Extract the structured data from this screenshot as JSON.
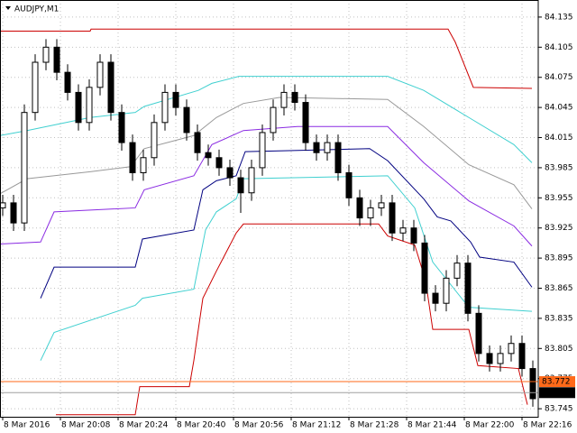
{
  "chart_data": {
    "type": "candlestick",
    "title": "AUDJPY,M1",
    "grid": true,
    "xlim": [
      -0.75,
      148.5
    ],
    "ylim": [
      83.737,
      84.152
    ],
    "xticks": [
      {
        "value": 0,
        "label": "8 Mar 2016"
      },
      {
        "value": 16,
        "label": "8 Mar 20:08"
      },
      {
        "value": 32,
        "label": "8 Mar 20:24"
      },
      {
        "value": 48,
        "label": "8 Mar 20:40"
      },
      {
        "value": 64,
        "label": "8 Mar 20:56"
      },
      {
        "value": 80,
        "label": "8 Mar 21:12"
      },
      {
        "value": 96,
        "label": "8 Mar 21:28"
      },
      {
        "value": 112,
        "label": "8 Mar 21:44"
      },
      {
        "value": 128,
        "label": "8 Mar 22:00"
      },
      {
        "value": 144,
        "label": "8 Mar 22:16"
      }
    ],
    "yticks": [
      84.135,
      84.105,
      84.075,
      84.045,
      84.015,
      83.985,
      83.955,
      83.925,
      83.895,
      83.865,
      83.835,
      83.805,
      83.775,
      83.745
    ],
    "up_color": "#ffffff",
    "down_color": "#000000",
    "wick_color": "#000000",
    "x": [
      0,
      3,
      6,
      9,
      12,
      15,
      18,
      21,
      24,
      27,
      30,
      33,
      36,
      39,
      42,
      45,
      48,
      51,
      54,
      57,
      60,
      63,
      66,
      69,
      72,
      75,
      78,
      81,
      84,
      87,
      90,
      93,
      96,
      99,
      102,
      105,
      108,
      111,
      114,
      117,
      120,
      123,
      126,
      129,
      132,
      135,
      138,
      141,
      144,
      147
    ],
    "open": [
      83.945,
      83.95,
      83.93,
      84.04,
      84.09,
      84.105,
      84.08,
      84.06,
      84.03,
      84.065,
      84.09,
      84.04,
      84.01,
      83.98,
      83.995,
      84.03,
      84.06,
      84.045,
      84.02,
      84.0,
      83.995,
      83.985,
      83.975,
      83.96,
      83.985,
      84.02,
      84.045,
      84.06,
      84.05,
      84.01,
      84.0,
      84.01,
      83.98,
      83.955,
      83.935,
      83.945,
      83.95,
      83.92,
      83.925,
      83.91,
      83.86,
      83.85,
      83.875,
      83.89,
      83.84,
      83.8,
      83.79,
      83.8,
      83.81,
      83.785
    ],
    "high": [
      83.958,
      83.958,
      84.048,
      84.098,
      84.113,
      84.113,
      84.088,
      84.068,
      84.073,
      84.098,
      84.098,
      84.048,
      84.018,
      84.003,
      84.038,
      84.068,
      84.068,
      84.053,
      84.028,
      84.008,
      84.003,
      83.993,
      83.983,
      83.993,
      84.028,
      84.053,
      84.068,
      84.068,
      84.058,
      84.018,
      84.018,
      84.018,
      83.988,
      83.963,
      83.953,
      83.958,
      83.958,
      83.933,
      83.933,
      83.918,
      83.868,
      83.883,
      83.898,
      83.898,
      83.848,
      83.808,
      83.808,
      83.818,
      83.818,
      83.793
    ],
    "low": [
      83.937,
      83.922,
      83.922,
      84.032,
      84.082,
      84.072,
      84.052,
      84.022,
      84.022,
      84.057,
      84.032,
      84.002,
      83.972,
      83.972,
      83.987,
      84.022,
      84.037,
      84.012,
      83.992,
      83.987,
      83.977,
      83.967,
      83.94,
      83.952,
      83.977,
      84.012,
      84.037,
      84.042,
      84.002,
      83.992,
      83.992,
      83.972,
      83.947,
      83.927,
      83.927,
      83.937,
      83.912,
      83.912,
      83.902,
      83.852,
      83.842,
      83.842,
      83.867,
      83.832,
      83.792,
      83.782,
      83.782,
      83.792,
      83.777,
      83.747
    ],
    "close": [
      83.95,
      83.93,
      84.04,
      84.09,
      84.105,
      84.08,
      84.06,
      84.03,
      84.065,
      84.09,
      84.04,
      84.01,
      83.98,
      83.995,
      84.03,
      84.06,
      84.045,
      84.02,
      84.0,
      83.995,
      83.985,
      83.975,
      83.96,
      83.985,
      84.02,
      84.045,
      84.06,
      84.05,
      84.01,
      84.0,
      84.01,
      83.98,
      83.955,
      83.935,
      83.945,
      83.95,
      83.92,
      83.925,
      83.91,
      83.86,
      83.85,
      83.875,
      83.89,
      83.84,
      83.8,
      83.79,
      83.8,
      83.81,
      83.785,
      83.755
    ],
    "lines": [
      {
        "color": "#cc0000",
        "x": [
          -0.75,
          24.25,
          24.5,
          123.5,
          125.5,
          130.5,
          146.75
        ],
        "values": [
          84.121,
          84.121,
          84.123,
          84.123,
          84.11,
          84.065,
          84.064
        ]
      },
      {
        "color": "#40d0d0",
        "x": [
          -0.75,
          6.75,
          24.25,
          36.75,
          39.25,
          54.25,
          58,
          65.5,
          106.75,
          116.75,
          129.25,
          141.75,
          146.75
        ],
        "values": [
          84.017,
          84.022,
          84.035,
          84.04,
          84.046,
          84.062,
          84.069,
          84.076,
          84.076,
          84.062,
          84.035,
          84.008,
          83.99
        ]
      },
      {
        "color": "#999999",
        "x": [
          -0.75,
          6.75,
          24.25,
          35.5,
          39.25,
          53,
          59.25,
          66.75,
          76.75,
          106.75,
          116.75,
          129.25,
          141.75,
          146.75
        ],
        "values": [
          83.959,
          83.974,
          83.981,
          83.986,
          84.004,
          84.017,
          84.035,
          84.049,
          84.055,
          84.053,
          84.026,
          83.988,
          83.968,
          83.944
        ]
      },
      {
        "color": "#8a2be2",
        "x": [
          -0.75,
          10.5,
          14.25,
          36.75,
          39.25,
          53,
          58,
          66.75,
          81.75,
          106.75,
          116.75,
          129.25,
          141.75,
          146.75
        ],
        "values": [
          83.909,
          83.911,
          83.941,
          83.945,
          83.963,
          83.977,
          84.008,
          84.022,
          84.026,
          84.026,
          83.99,
          83.952,
          83.927,
          83.907
        ]
      },
      {
        "color": "#000080",
        "x": [
          10.5,
          14.25,
          36.75,
          38.75,
          53,
          55.5,
          59.25,
          64.75,
          67.25,
          79.25,
          101.75,
          106.75,
          116.75,
          120.5,
          124.25,
          129.75,
          132.25,
          141.75,
          146.75
        ],
        "values": [
          83.855,
          83.886,
          83.886,
          83.914,
          83.923,
          83.963,
          83.972,
          83.977,
          84.001,
          84.002,
          84.004,
          83.992,
          83.954,
          83.936,
          83.932,
          83.911,
          83.896,
          83.891,
          83.866
        ]
      },
      {
        "color": "#40d0d0",
        "x": [
          10.5,
          14.25,
          36.75,
          38.75,
          53,
          56.25,
          59.25,
          64.75,
          66.75,
          106.75,
          114.25,
          116.75,
          119.25,
          129.25,
          146.75
        ],
        "values": [
          83.793,
          83.821,
          83.848,
          83.855,
          83.864,
          83.923,
          83.941,
          83.954,
          83.974,
          83.977,
          83.945,
          83.918,
          83.891,
          83.846,
          83.842
        ]
      },
      {
        "color": "#cc0000",
        "x": [
          14.75,
          36.75,
          38,
          51.75,
          53,
          55.5,
          59.25,
          64.75,
          66.75,
          104.25,
          106.75,
          114.25,
          117.25,
          119.25,
          129.25,
          131.75,
          143,
          145.5
        ],
        "values": [
          83.739,
          83.739,
          83.767,
          83.767,
          83.793,
          83.855,
          83.882,
          83.92,
          83.929,
          83.929,
          83.917,
          83.908,
          83.873,
          83.824,
          83.824,
          83.788,
          83.785,
          83.749
        ]
      }
    ],
    "price_lines": [
      {
        "value": 83.772,
        "color": "#ff6a1a"
      },
      {
        "value": 83.761,
        "color": "#000000"
      }
    ]
  }
}
